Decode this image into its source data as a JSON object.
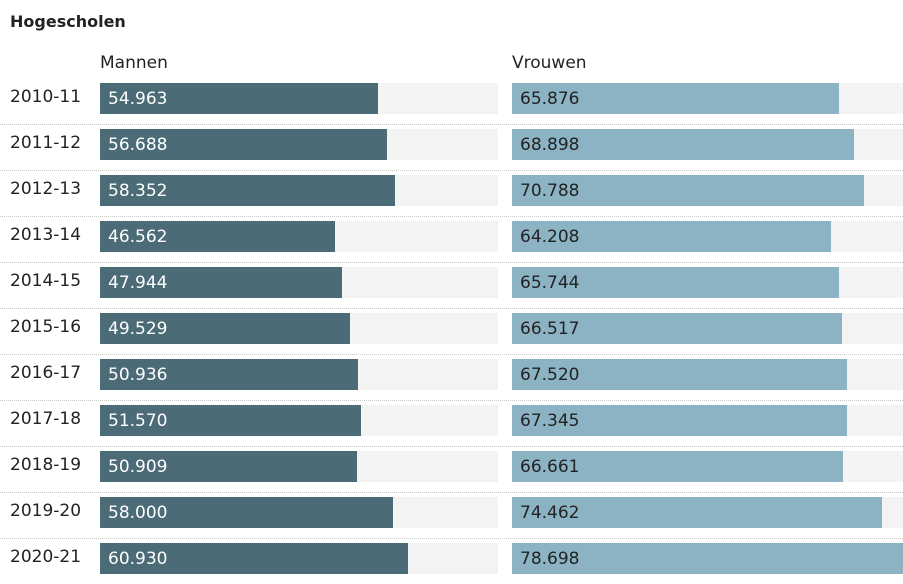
{
  "chart_data": {
    "type": "bar",
    "title": "Hogescholen",
    "categories": [
      "2010-11",
      "2011-12",
      "2012-13",
      "2013-14",
      "2014-15",
      "2015-16",
      "2016-17",
      "2017-18",
      "2018-19",
      "2019-20",
      "2020-21"
    ],
    "series": [
      {
        "name": "Mannen",
        "color": "#4b6b77",
        "values": [
          54963,
          56688,
          58352,
          46562,
          47944,
          49529,
          50936,
          51570,
          50909,
          58000,
          60930
        ],
        "labels": [
          "54.963",
          "56.688",
          "58.352",
          "46.562",
          "47.944",
          "49.529",
          "50.936",
          "51.570",
          "50.909",
          "58.000",
          "60.930"
        ]
      },
      {
        "name": "Vrouwen",
        "color": "#8cb3c4",
        "values": [
          65876,
          68898,
          70788,
          64208,
          65744,
          66517,
          67520,
          67345,
          66661,
          74462,
          78698
        ],
        "labels": [
          "65.876",
          "68.898",
          "70.788",
          "64.208",
          "65.744",
          "66.517",
          "67.520",
          "67.345",
          "66.661",
          "74.462",
          "78.698"
        ]
      }
    ],
    "xlim": [
      0,
      78698
    ],
    "track_color": "#f3f3f3"
  }
}
